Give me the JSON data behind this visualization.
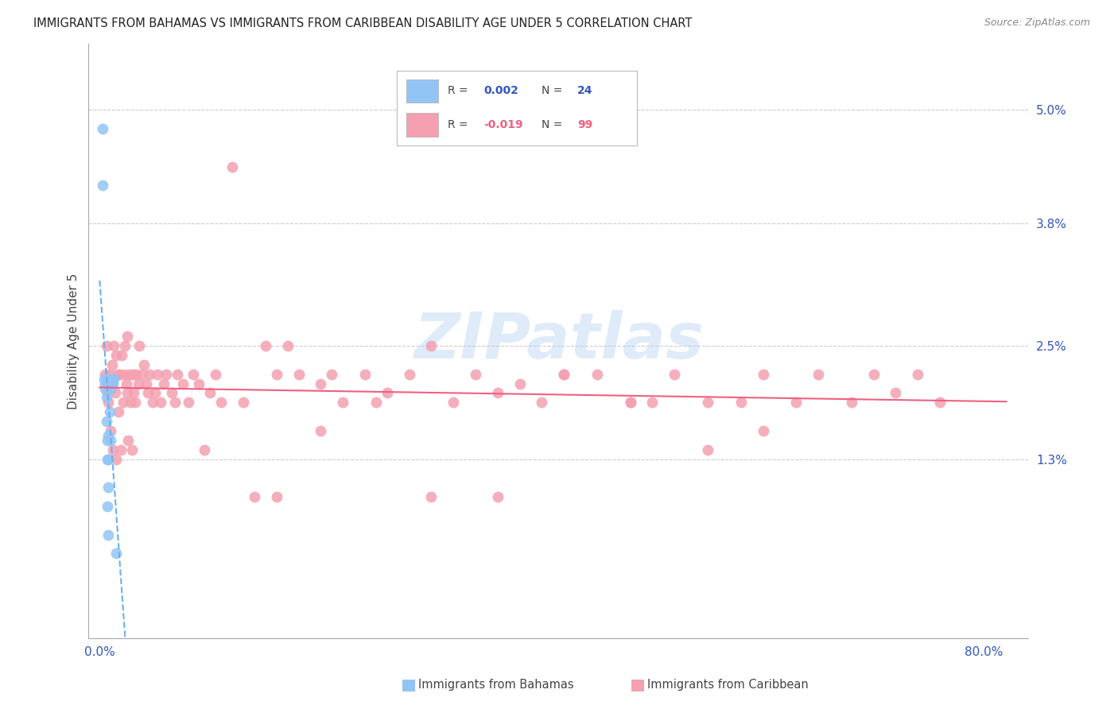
{
  "title": "IMMIGRANTS FROM BAHAMAS VS IMMIGRANTS FROM CARIBBEAN DISABILITY AGE UNDER 5 CORRELATION CHART",
  "source": "Source: ZipAtlas.com",
  "ylabel": "Disability Age Under 5",
  "ytick_vals": [
    0.0,
    0.013,
    0.025,
    0.038,
    0.05
  ],
  "ytick_labels": [
    "",
    "1.3%",
    "2.5%",
    "3.8%",
    "5.0%"
  ],
  "xtick_vals": [
    0.0,
    0.2,
    0.4,
    0.6,
    0.8
  ],
  "xtick_labels": [
    "0.0%",
    "",
    "",
    "",
    "80.0%"
  ],
  "xlim": [
    -0.01,
    0.84
  ],
  "ylim": [
    -0.006,
    0.057
  ],
  "watermark": "ZIPatlas",
  "color_bahamas": "#92C5F5",
  "color_caribbean": "#F4A0B0",
  "color_trendline_bahamas": "#6AB0F0",
  "color_trendline_caribbean": "#F06080",
  "color_tick": "#3355BB",
  "color_grid": "#cccccc",
  "background_color": "#ffffff",
  "bahamas_x": [
    0.003,
    0.003,
    0.004,
    0.005,
    0.005,
    0.006,
    0.006,
    0.007,
    0.007,
    0.007,
    0.007,
    0.008,
    0.008,
    0.008,
    0.008,
    0.009,
    0.009,
    0.01,
    0.01,
    0.01,
    0.011,
    0.012,
    0.013,
    0.015
  ],
  "bahamas_y": [
    0.048,
    0.042,
    0.0215,
    0.021,
    0.0205,
    0.0195,
    0.017,
    0.015,
    0.013,
    0.021,
    0.008,
    0.0155,
    0.013,
    0.01,
    0.005,
    0.018,
    0.021,
    0.0215,
    0.015,
    0.0205,
    0.021,
    0.021,
    0.0215,
    0.003
  ],
  "caribbean_x": [
    0.005,
    0.006,
    0.007,
    0.008,
    0.009,
    0.01,
    0.01,
    0.011,
    0.012,
    0.013,
    0.014,
    0.015,
    0.015,
    0.016,
    0.017,
    0.018,
    0.019,
    0.02,
    0.021,
    0.022,
    0.023,
    0.024,
    0.025,
    0.025,
    0.026,
    0.027,
    0.028,
    0.029,
    0.03,
    0.031,
    0.032,
    0.033,
    0.035,
    0.036,
    0.038,
    0.04,
    0.042,
    0.044,
    0.045,
    0.048,
    0.05,
    0.052,
    0.055,
    0.058,
    0.06,
    0.065,
    0.068,
    0.07,
    0.075,
    0.08,
    0.085,
    0.09,
    0.095,
    0.1,
    0.105,
    0.11,
    0.12,
    0.13,
    0.14,
    0.15,
    0.16,
    0.17,
    0.18,
    0.2,
    0.21,
    0.22,
    0.24,
    0.26,
    0.28,
    0.3,
    0.32,
    0.34,
    0.36,
    0.38,
    0.4,
    0.42,
    0.45,
    0.48,
    0.5,
    0.52,
    0.55,
    0.58,
    0.6,
    0.63,
    0.65,
    0.68,
    0.7,
    0.72,
    0.74,
    0.76,
    0.6,
    0.55,
    0.48,
    0.42,
    0.36,
    0.3,
    0.25,
    0.2,
    0.16
  ],
  "caribbean_y": [
    0.022,
    0.025,
    0.02,
    0.019,
    0.022,
    0.021,
    0.016,
    0.023,
    0.014,
    0.025,
    0.02,
    0.024,
    0.013,
    0.022,
    0.018,
    0.022,
    0.014,
    0.024,
    0.019,
    0.022,
    0.025,
    0.021,
    0.026,
    0.02,
    0.015,
    0.022,
    0.019,
    0.014,
    0.022,
    0.02,
    0.019,
    0.022,
    0.021,
    0.025,
    0.022,
    0.023,
    0.021,
    0.02,
    0.022,
    0.019,
    0.02,
    0.022,
    0.019,
    0.021,
    0.022,
    0.02,
    0.019,
    0.022,
    0.021,
    0.019,
    0.022,
    0.021,
    0.014,
    0.02,
    0.022,
    0.019,
    0.044,
    0.019,
    0.009,
    0.025,
    0.009,
    0.025,
    0.022,
    0.021,
    0.022,
    0.019,
    0.022,
    0.02,
    0.022,
    0.025,
    0.019,
    0.022,
    0.02,
    0.021,
    0.019,
    0.022,
    0.022,
    0.019,
    0.019,
    0.022,
    0.019,
    0.019,
    0.022,
    0.019,
    0.022,
    0.019,
    0.022,
    0.02,
    0.022,
    0.019,
    0.016,
    0.014,
    0.019,
    0.022,
    0.009,
    0.009,
    0.019,
    0.016,
    0.022
  ]
}
